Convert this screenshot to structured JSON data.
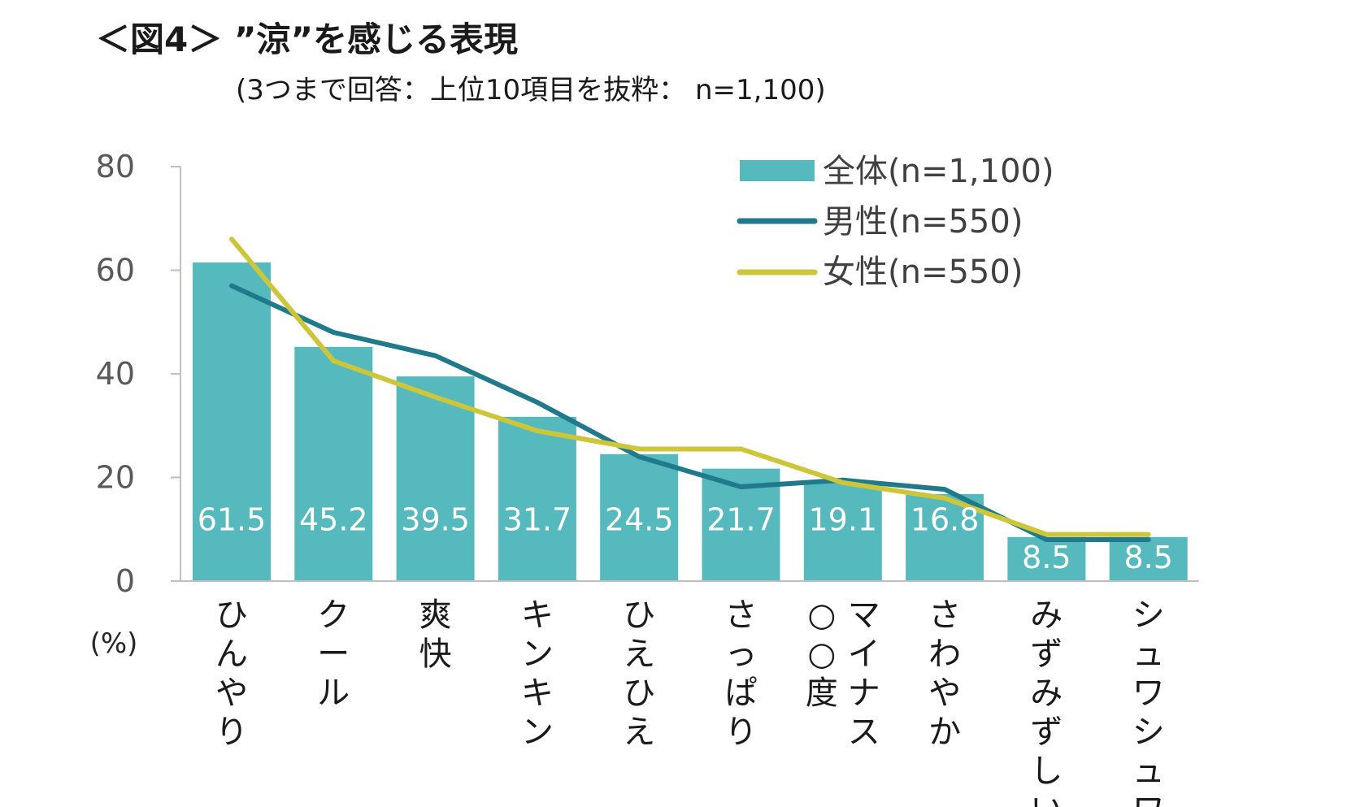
{
  "chart_data": {
    "type": "bar",
    "title": "＜図4＞ ”涼”を感じる表現",
    "subtitle": "(3つまで回答：上位10項目を抜粋：  n=1,100)",
    "y_unit_label": "(%)",
    "ylim": [
      0,
      80
    ],
    "yticks": [
      0,
      20,
      40,
      60,
      80
    ],
    "categories": [
      "ひんやり",
      "クール",
      "爽快",
      "キンキン",
      "ひえひえ",
      "さっぱり",
      "マイナス○○度",
      "さわやか",
      "みずみずしい",
      "シュワシュワ"
    ],
    "category_columns": [
      [
        "ひんやり"
      ],
      [
        "クール"
      ],
      [
        "爽快"
      ],
      [
        "キンキン"
      ],
      [
        "ひえひえ"
      ],
      [
        "さっぱり"
      ],
      [
        "マイナス",
        "○○度"
      ],
      [
        "さわやか"
      ],
      [
        "みずみずしい"
      ],
      [
        "シュワシュワ"
      ]
    ],
    "series": [
      {
        "name": "全体(n=1,100)",
        "type": "bar",
        "color": "#55b9bd",
        "values": [
          61.5,
          45.2,
          39.5,
          31.7,
          24.5,
          21.7,
          19.1,
          16.8,
          8.5,
          8.5
        ],
        "data_labels": [
          "61.5",
          "45.2",
          "39.5",
          "31.7",
          "24.5",
          "21.7",
          "19.1",
          "16.8",
          "8.5",
          "8.5"
        ]
      },
      {
        "name": "男性(n=550)",
        "type": "line",
        "color": "#217a8c",
        "values": [
          57,
          48,
          43.5,
          34.5,
          24,
          18.2,
          19.5,
          17.7,
          8,
          8
        ]
      },
      {
        "name": "女性(n=550)",
        "type": "line",
        "color": "#cdc63a",
        "values": [
          66,
          42.5,
          35.5,
          29,
          25.5,
          25.5,
          19,
          16,
          9,
          9
        ]
      }
    ],
    "legend_position": "top-right",
    "grid": false
  }
}
